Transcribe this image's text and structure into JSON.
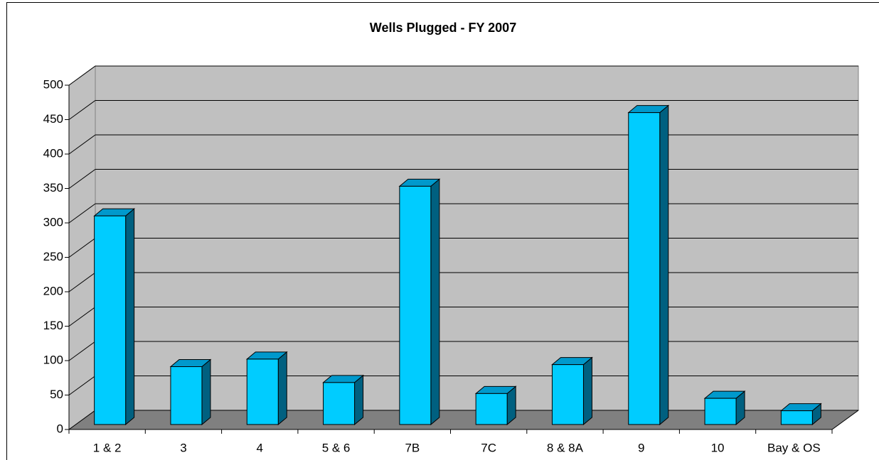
{
  "chart_data": {
    "type": "bar3d",
    "title": "Wells Plugged - FY 2007",
    "categories": [
      "1 & 2",
      "3",
      "4",
      "5 & 6",
      "7B",
      "7C",
      "8 & 8A",
      "9",
      "10",
      "Bay & OS"
    ],
    "values": [
      303,
      84,
      95,
      61,
      346,
      45,
      87,
      453,
      38,
      20
    ],
    "color": "#00ccff",
    "ylim": [
      0,
      500
    ],
    "yticks": [
      0,
      50,
      100,
      150,
      200,
      250,
      300,
      350,
      400,
      450,
      500
    ],
    "grid": true
  }
}
